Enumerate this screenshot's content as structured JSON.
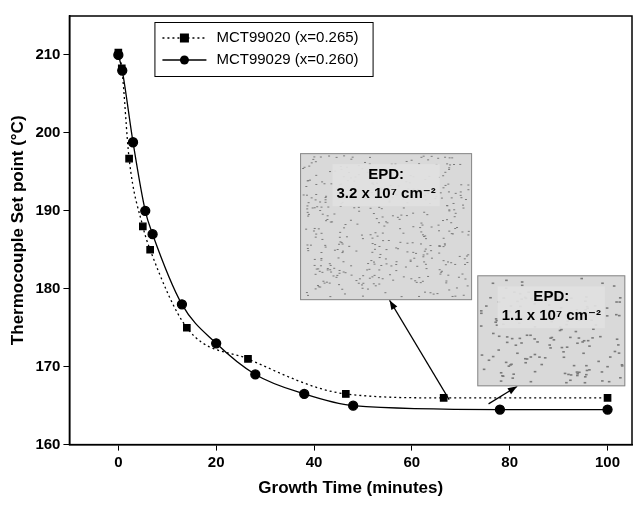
{
  "chart_data": {
    "type": "line",
    "x_label": "Growth Time (minutes)",
    "y_label": "Thermocouple Set point (°C)",
    "xlim": [
      -10,
      105
    ],
    "xticks": [
      0,
      20,
      40,
      60,
      80,
      100
    ],
    "ylim": [
      160,
      215
    ],
    "yticks": [
      160,
      170,
      180,
      190,
      200,
      210
    ],
    "grid": false,
    "legend": "top left",
    "series": [
      {
        "name": "MCT99020 (x=0.265)",
        "color": "#000000",
        "marker": "square",
        "line_style": "dotted",
        "x": [
          0,
          0.7,
          2.2,
          5,
          6.5,
          14,
          26.5,
          46.5,
          66.5,
          100
        ],
        "values": [
          210.3,
          208.3,
          196.7,
          188,
          185,
          175,
          171,
          166.5,
          166,
          166
        ]
      },
      {
        "name": "MCT99029 (x=0.260)",
        "color": "#000000",
        "marker": "circle",
        "line_style": "solid",
        "x": [
          0,
          0.8,
          3,
          5.5,
          7,
          13,
          20,
          28,
          38,
          48,
          78,
          100
        ],
        "values": [
          210,
          208,
          198.8,
          190,
          187,
          178,
          173,
          169,
          166.5,
          165,
          164.5,
          164.5
        ]
      }
    ],
    "annotations": [
      {
        "text": [
          "EPD:",
          "3.2 x 10⁷ cm⁻²"
        ]
      },
      {
        "text": [
          "EPD:",
          "1.1 x 10⁷ cm⁻²"
        ]
      }
    ]
  }
}
